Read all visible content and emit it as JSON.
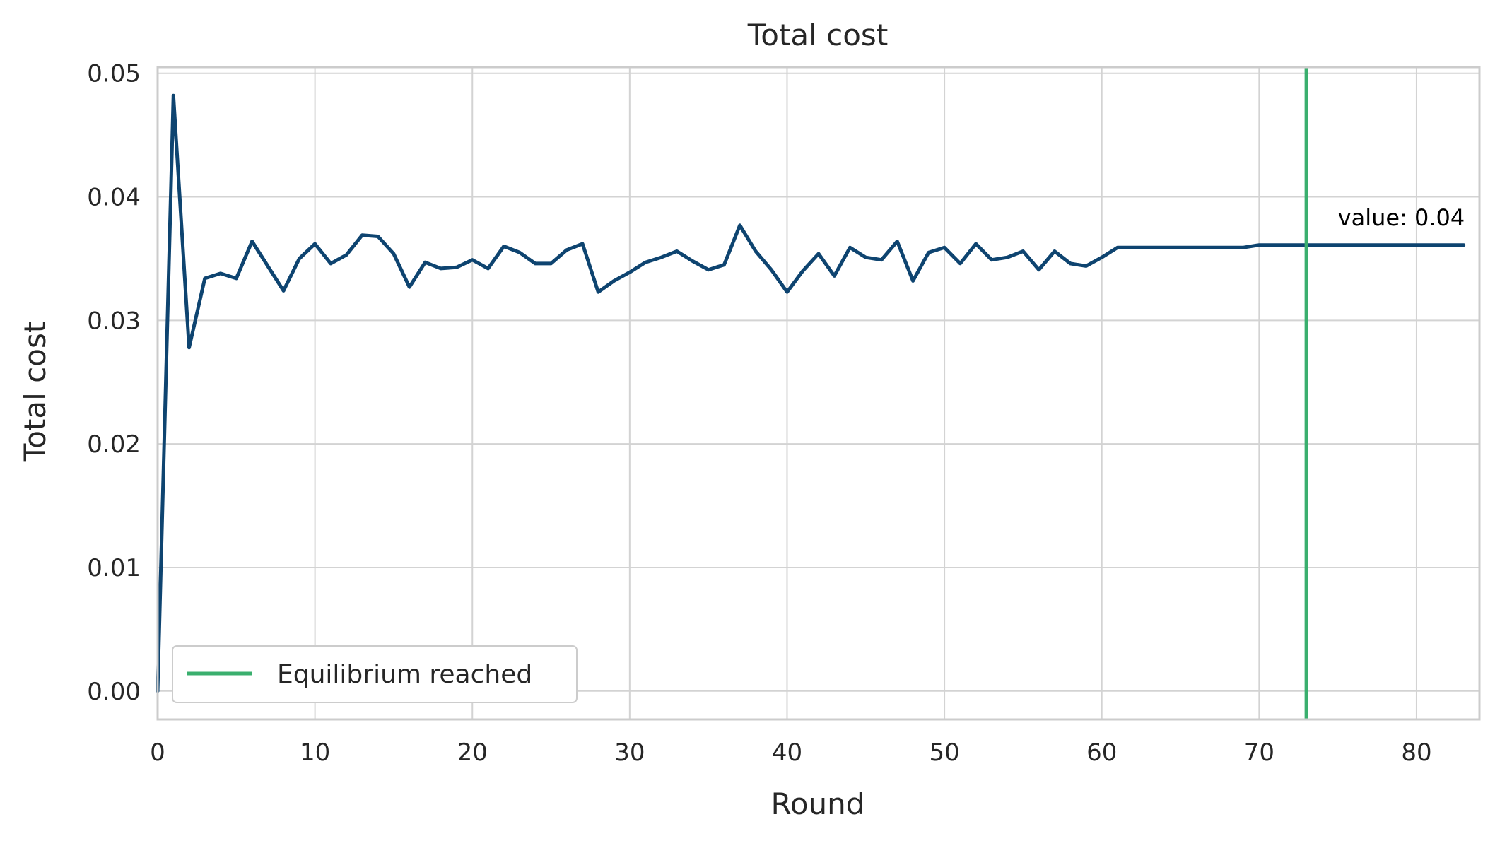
{
  "chart_data": {
    "type": "line",
    "title": "Total cost",
    "xlabel": "Round",
    "ylabel": "Total cost",
    "xlim": [
      0,
      84
    ],
    "ylim": [
      -0.0023,
      0.0505
    ],
    "xticks": [
      0,
      10,
      20,
      30,
      40,
      50,
      60,
      70,
      80
    ],
    "xtick_labels": [
      "0",
      "10",
      "20",
      "30",
      "40",
      "50",
      "60",
      "70",
      "80"
    ],
    "yticks": [
      0.0,
      0.01,
      0.02,
      0.03,
      0.04,
      0.05
    ],
    "ytick_labels": [
      "0.00",
      "0.01",
      "0.02",
      "0.03",
      "0.04",
      "0.05"
    ],
    "grid": true,
    "series": [
      {
        "color": "#0e4470",
        "x": [
          0,
          1,
          2,
          3,
          4,
          5,
          6,
          7,
          8,
          9,
          10,
          11,
          12,
          13,
          14,
          15,
          16,
          17,
          18,
          19,
          20,
          21,
          22,
          23,
          24,
          25,
          26,
          27,
          28,
          29,
          30,
          31,
          32,
          33,
          34,
          35,
          36,
          37,
          38,
          39,
          40,
          41,
          42,
          43,
          44,
          45,
          46,
          47,
          48,
          49,
          50,
          51,
          52,
          53,
          54,
          55,
          56,
          57,
          58,
          59,
          60,
          61,
          62,
          63,
          64,
          65,
          66,
          67,
          68,
          69,
          70,
          71,
          72,
          73,
          74,
          75,
          76,
          77,
          78,
          79,
          80,
          81,
          82,
          83
        ],
        "y": [
          0.0,
          0.0482,
          0.0278,
          0.0334,
          0.0338,
          0.0334,
          0.0364,
          0.0344,
          0.0324,
          0.035,
          0.0362,
          0.0346,
          0.0353,
          0.0369,
          0.0368,
          0.0354,
          0.0327,
          0.0347,
          0.0342,
          0.0343,
          0.0349,
          0.0342,
          0.036,
          0.0355,
          0.0346,
          0.0346,
          0.0357,
          0.0362,
          0.0323,
          0.0332,
          0.0339,
          0.0347,
          0.0351,
          0.0356,
          0.0348,
          0.0341,
          0.0345,
          0.0377,
          0.0356,
          0.0341,
          0.0323,
          0.034,
          0.0354,
          0.0336,
          0.0359,
          0.0351,
          0.0349,
          0.0364,
          0.0332,
          0.0355,
          0.0359,
          0.0346,
          0.0362,
          0.0349,
          0.0351,
          0.0356,
          0.0341,
          0.0356,
          0.0346,
          0.0344,
          0.0351,
          0.0359,
          0.0359,
          0.0359,
          0.0359,
          0.0359,
          0.0359,
          0.0359,
          0.0359,
          0.0359,
          0.0361,
          0.0361,
          0.0361,
          0.0361,
          0.0361,
          0.0361,
          0.0361,
          0.0361,
          0.0361,
          0.0361,
          0.0361,
          0.0361,
          0.0361,
          0.0361
        ]
      }
    ],
    "vline": {
      "x": 73,
      "color": "#3aaf6e",
      "label": "Equilibrium reached"
    },
    "annotation": {
      "text": "value: 0.04",
      "x": 75,
      "y": 0.0377
    },
    "legend": {
      "placement": "lower-left",
      "entries": [
        "Equilibrium reached"
      ]
    }
  }
}
